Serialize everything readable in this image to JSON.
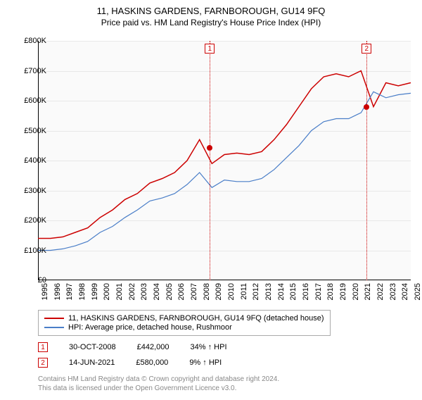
{
  "title": "11, HASKINS GARDENS, FARNBOROUGH, GU14 9FQ",
  "subtitle": "Price paid vs. HM Land Registry's House Price Index (HPI)",
  "chart": {
    "type": "line",
    "background_color": "#fafafa",
    "grid_color": "#e8e8e8",
    "ylim": [
      0,
      800000
    ],
    "ytick_step": 100000,
    "ytick_prefix": "£",
    "ytick_suffix": "K",
    "years": [
      1995,
      1996,
      1997,
      1998,
      1999,
      2000,
      2001,
      2002,
      2003,
      2004,
      2005,
      2006,
      2007,
      2008,
      2009,
      2010,
      2011,
      2012,
      2013,
      2014,
      2015,
      2016,
      2017,
      2018,
      2019,
      2020,
      2021,
      2022,
      2023,
      2024,
      2025
    ],
    "series": [
      {
        "name": "price_paid",
        "color": "#cc0000",
        "width": 1.5,
        "points": [
          140,
          140,
          145,
          160,
          175,
          210,
          235,
          270,
          290,
          325,
          340,
          360,
          400,
          470,
          390,
          420,
          425,
          420,
          430,
          470,
          520,
          580,
          640,
          680,
          690,
          680,
          700,
          580,
          660,
          650,
          660
        ]
      },
      {
        "name": "hpi",
        "color": "#4a7ec8",
        "width": 1.2,
        "points": [
          100,
          100,
          105,
          115,
          130,
          160,
          180,
          210,
          235,
          265,
          275,
          290,
          320,
          360,
          310,
          335,
          330,
          330,
          340,
          370,
          410,
          450,
          500,
          530,
          540,
          540,
          560,
          630,
          610,
          620,
          625
        ]
      }
    ],
    "sale_markers": [
      {
        "n": 1,
        "year": 2008.83,
        "price": 442000,
        "color": "#cc0000"
      },
      {
        "n": 2,
        "year": 2021.45,
        "price": 580000,
        "color": "#cc0000"
      }
    ]
  },
  "legend": {
    "items": [
      {
        "label": "11, HASKINS GARDENS, FARNBOROUGH, GU14 9FQ (detached house)",
        "color": "#cc0000"
      },
      {
        "label": "HPI: Average price, detached house, Rushmoor",
        "color": "#4a7ec8"
      }
    ]
  },
  "sales": [
    {
      "n": "1",
      "date": "30-OCT-2008",
      "price": "£442,000",
      "diff": "34% ↑ HPI"
    },
    {
      "n": "2",
      "date": "14-JUN-2021",
      "price": "£580,000",
      "diff": "9% ↑ HPI"
    }
  ],
  "attribution": {
    "line1": "Contains HM Land Registry data © Crown copyright and database right 2024.",
    "line2": "This data is licensed under the Open Government Licence v3.0."
  }
}
